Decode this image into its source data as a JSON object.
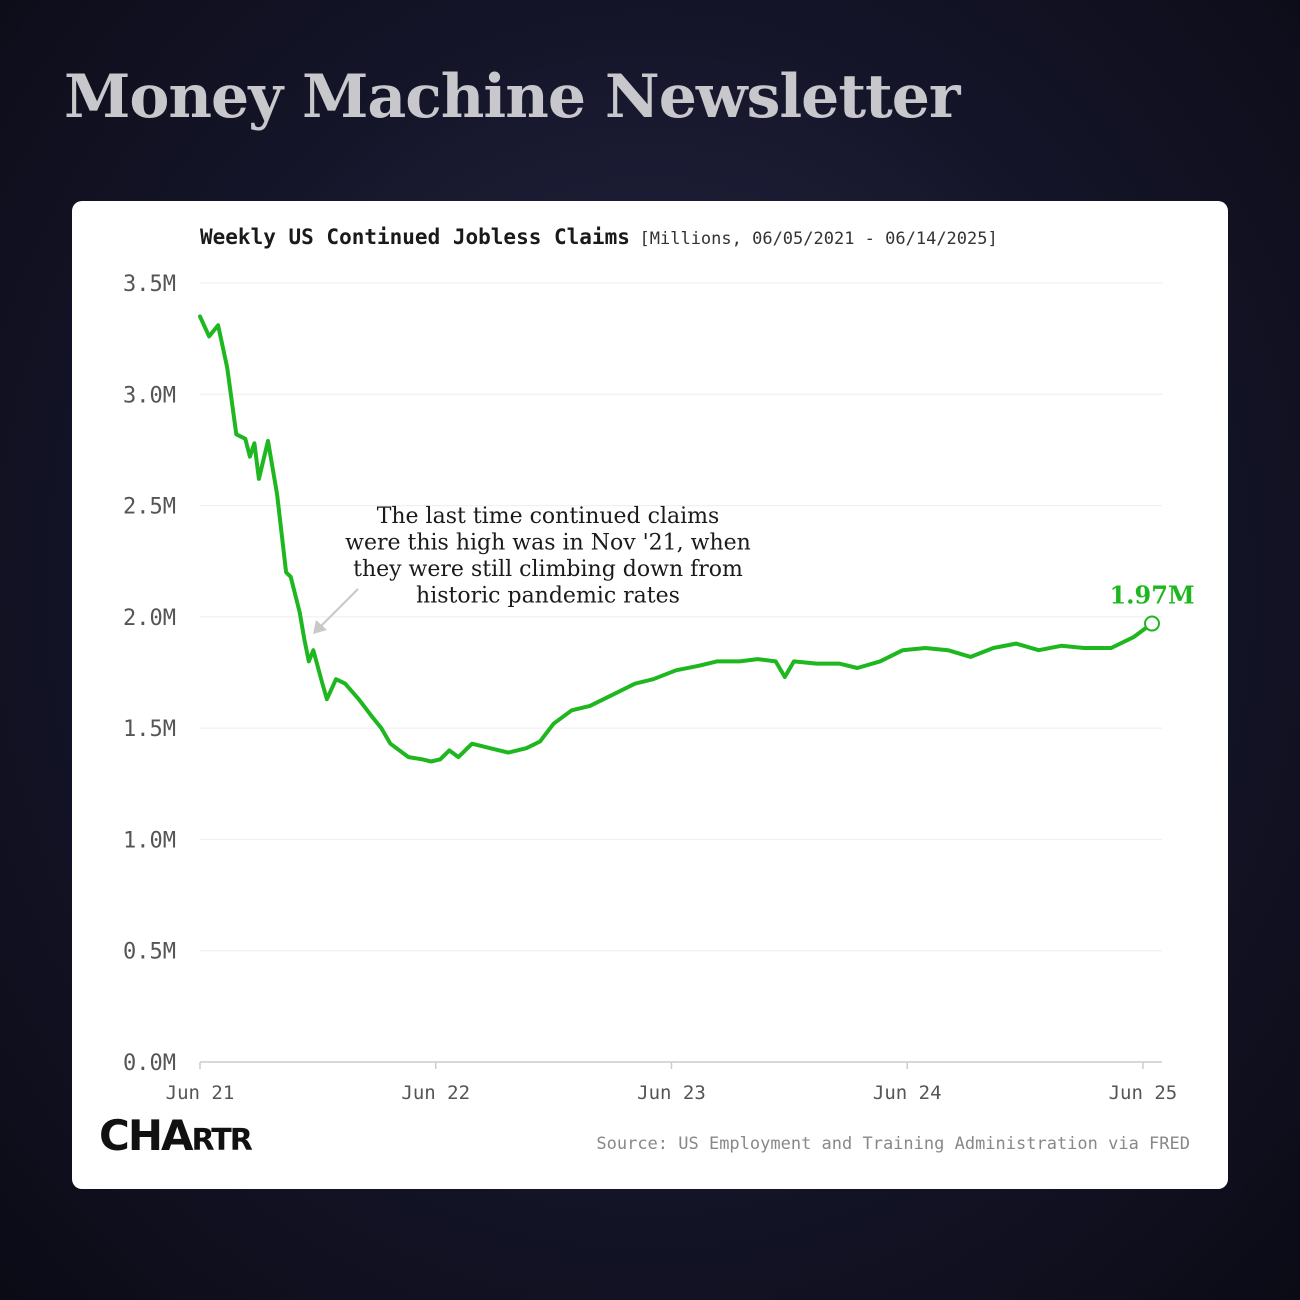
{
  "header": {
    "title": "Money Machine Newsletter"
  },
  "chart": {
    "title": "Weekly US Continued Jobless Claims",
    "subtitle": "[Millions, 06/05/2021 - 06/14/2025]",
    "annotation_lines": [
      "The last time continued claims",
      "were this high was in Nov '21, when",
      "they were still climbing down from",
      "historic pandemic rates"
    ],
    "end_label": "1.97M",
    "source": "Source: US Employment and Training Administration via FRED",
    "logo": {
      "big": "CHA",
      "small": "RTR"
    }
  },
  "colors": {
    "line": "#1fb71f",
    "background": "#15152a",
    "card": "#ffffff"
  },
  "chart_data": {
    "type": "line",
    "title": "Weekly US Continued Jobless Claims",
    "subtitle": "[Millions, 06/05/2021 - 06/14/2025]",
    "xlabel": "",
    "ylabel": "",
    "x_ticks": [
      "Jun 21",
      "Jun 22",
      "Jun 23",
      "Jun 24",
      "Jun 25"
    ],
    "y_ticks": [
      "0.0M",
      "0.5M",
      "1.0M",
      "1.5M",
      "2.0M",
      "2.5M",
      "3.0M",
      "3.5M"
    ],
    "ylim": [
      0,
      3.5
    ],
    "xlim": [
      "2021-06-05",
      "2025-06-14"
    ],
    "grid": true,
    "series": [
      {
        "values_unit": "millions",
        "points": [
          [
            "2021-06-05",
            3.35
          ],
          [
            "2021-06-19",
            3.26
          ],
          [
            "2021-07-03",
            3.31
          ],
          [
            "2021-07-17",
            3.12
          ],
          [
            "2021-07-31",
            2.82
          ],
          [
            "2021-08-14",
            2.8
          ],
          [
            "2021-08-21",
            2.72
          ],
          [
            "2021-08-28",
            2.78
          ],
          [
            "2021-09-04",
            2.62
          ],
          [
            "2021-09-18",
            2.79
          ],
          [
            "2021-10-02",
            2.55
          ],
          [
            "2021-10-16",
            2.2
          ],
          [
            "2021-10-23",
            2.18
          ],
          [
            "2021-11-06",
            2.02
          ],
          [
            "2021-11-13",
            1.9
          ],
          [
            "2021-11-20",
            1.8
          ],
          [
            "2021-11-27",
            1.85
          ],
          [
            "2021-12-11",
            1.7
          ],
          [
            "2021-12-18",
            1.63
          ],
          [
            "2022-01-01",
            1.72
          ],
          [
            "2022-01-15",
            1.7
          ],
          [
            "2022-02-05",
            1.63
          ],
          [
            "2022-02-26",
            1.55
          ],
          [
            "2022-03-12",
            1.5
          ],
          [
            "2022-03-26",
            1.43
          ],
          [
            "2022-04-23",
            1.37
          ],
          [
            "2022-05-14",
            1.36
          ],
          [
            "2022-05-28",
            1.35
          ],
          [
            "2022-06-11",
            1.36
          ],
          [
            "2022-06-25",
            1.4
          ],
          [
            "2022-07-09",
            1.37
          ],
          [
            "2022-07-30",
            1.43
          ],
          [
            "2022-08-27",
            1.41
          ],
          [
            "2022-09-24",
            1.39
          ],
          [
            "2022-10-22",
            1.41
          ],
          [
            "2022-11-12",
            1.44
          ],
          [
            "2022-12-03",
            1.52
          ],
          [
            "2022-12-31",
            1.58
          ],
          [
            "2023-01-28",
            1.6
          ],
          [
            "2023-03-04",
            1.65
          ],
          [
            "2023-04-08",
            1.7
          ],
          [
            "2023-05-06",
            1.72
          ],
          [
            "2023-06-10",
            1.76
          ],
          [
            "2023-07-15",
            1.78
          ],
          [
            "2023-08-12",
            1.8
          ],
          [
            "2023-09-16",
            1.8
          ],
          [
            "2023-10-14",
            1.81
          ],
          [
            "2023-11-11",
            1.8
          ],
          [
            "2023-11-25",
            1.73
          ],
          [
            "2023-12-09",
            1.8
          ],
          [
            "2024-01-13",
            1.79
          ],
          [
            "2024-02-17",
            1.79
          ],
          [
            "2024-03-16",
            1.77
          ],
          [
            "2024-04-20",
            1.8
          ],
          [
            "2024-05-25",
            1.85
          ],
          [
            "2024-06-29",
            1.86
          ],
          [
            "2024-08-03",
            1.85
          ],
          [
            "2024-09-07",
            1.82
          ],
          [
            "2024-10-12",
            1.86
          ],
          [
            "2024-11-16",
            1.88
          ],
          [
            "2024-12-21",
            1.85
          ],
          [
            "2025-01-25",
            1.87
          ],
          [
            "2025-03-01",
            1.86
          ],
          [
            "2025-04-12",
            1.86
          ],
          [
            "2025-05-17",
            1.91
          ],
          [
            "2025-06-14",
            1.97
          ]
        ]
      }
    ]
  }
}
